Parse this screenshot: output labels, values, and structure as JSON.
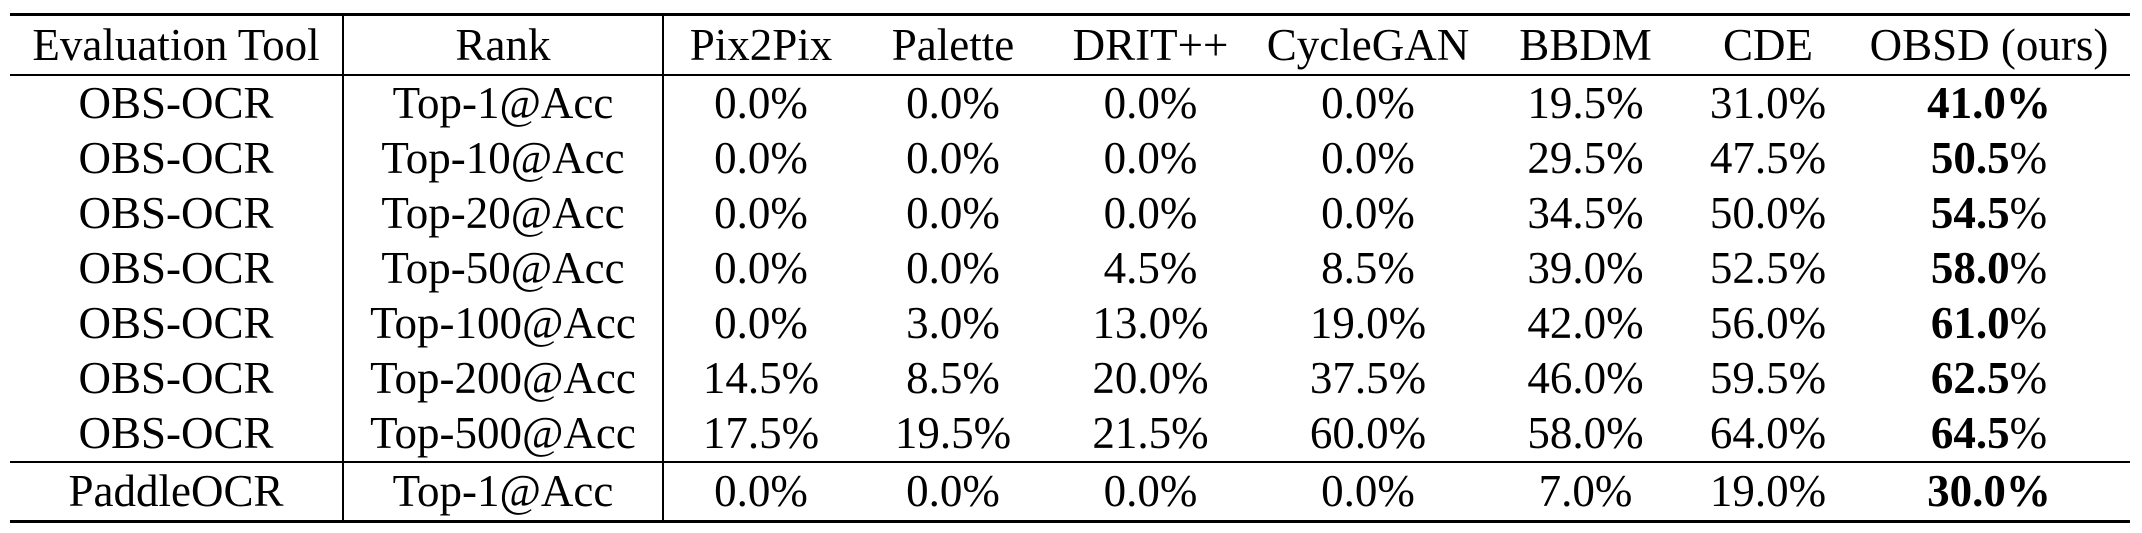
{
  "page": {
    "background_color": "#ffffff",
    "text_color": "#000000"
  },
  "table": {
    "columns": [
      "Evaluation Tool",
      "Rank",
      "Pix2Pix",
      "Palette",
      "DRIT++",
      "CycleGAN",
      "BBDM",
      "CDE",
      "OBSD (ours)"
    ],
    "rows": [
      {
        "tool": "OBS-OCR",
        "rank": "Top-1@Acc",
        "values": [
          "0.0%",
          "0.0%",
          "0.0%",
          "0.0%",
          "19.5%",
          "31.0%"
        ],
        "obsd": {
          "number": "41.0",
          "percent": "%",
          "percent_bold": true
        },
        "rule_above": false
      },
      {
        "tool": "OBS-OCR",
        "rank": "Top-10@Acc",
        "values": [
          "0.0%",
          "0.0%",
          "0.0%",
          "0.0%",
          "29.5%",
          "47.5%"
        ],
        "obsd": {
          "number": "50.5",
          "percent": "%",
          "percent_bold": false
        },
        "rule_above": false
      },
      {
        "tool": "OBS-OCR",
        "rank": "Top-20@Acc",
        "values": [
          "0.0%",
          "0.0%",
          "0.0%",
          "0.0%",
          "34.5%",
          "50.0%"
        ],
        "obsd": {
          "number": "54.5",
          "percent": "%",
          "percent_bold": false
        },
        "rule_above": false
      },
      {
        "tool": "OBS-OCR",
        "rank": "Top-50@Acc",
        "values": [
          "0.0%",
          "0.0%",
          "4.5%",
          "8.5%",
          "39.0%",
          "52.5%"
        ],
        "obsd": {
          "number": "58.0",
          "percent": "%",
          "percent_bold": false
        },
        "rule_above": false
      },
      {
        "tool": "OBS-OCR",
        "rank": "Top-100@Acc",
        "values": [
          "0.0%",
          "3.0%",
          "13.0%",
          "19.0%",
          "42.0%",
          "56.0%"
        ],
        "obsd": {
          "number": "61.0",
          "percent": "%",
          "percent_bold": false
        },
        "rule_above": false
      },
      {
        "tool": "OBS-OCR",
        "rank": "Top-200@Acc",
        "values": [
          "14.5%",
          "8.5%",
          "20.0%",
          "37.5%",
          "46.0%",
          "59.5%"
        ],
        "obsd": {
          "number": "62.5",
          "percent": "%",
          "percent_bold": false
        },
        "rule_above": false
      },
      {
        "tool": "OBS-OCR",
        "rank": "Top-500@Acc",
        "values": [
          "17.5%",
          "19.5%",
          "21.5%",
          "60.0%",
          "58.0%",
          "64.0%"
        ],
        "obsd": {
          "number": "64.5",
          "percent": "%",
          "percent_bold": false
        },
        "rule_above": false
      },
      {
        "tool": "PaddleOCR",
        "rank": "Top-1@Acc",
        "values": [
          "0.0%",
          "0.0%",
          "0.0%",
          "0.0%",
          "7.0%",
          "19.0%"
        ],
        "obsd": {
          "number": "30.0",
          "percent": "%",
          "percent_bold": true
        },
        "rule_above": true
      }
    ]
  }
}
